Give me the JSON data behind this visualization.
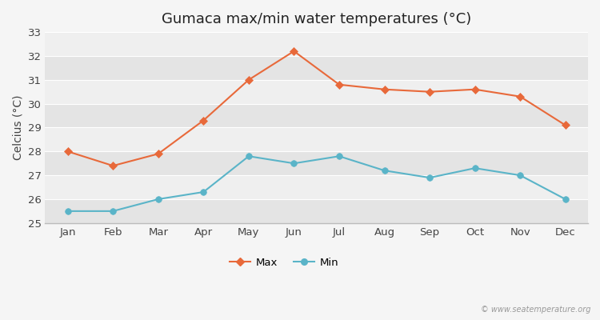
{
  "title": "Gumaca max/min water temperatures (°C)",
  "ylabel": "Celcius (°C)",
  "months": [
    "Jan",
    "Feb",
    "Mar",
    "Apr",
    "May",
    "Jun",
    "Jul",
    "Aug",
    "Sep",
    "Oct",
    "Nov",
    "Dec"
  ],
  "max_temps": [
    28.0,
    27.4,
    27.9,
    29.3,
    31.0,
    32.2,
    30.8,
    30.6,
    30.5,
    30.6,
    30.3,
    29.1
  ],
  "min_temps": [
    25.5,
    25.5,
    26.0,
    26.3,
    27.8,
    27.5,
    27.8,
    27.2,
    26.9,
    27.3,
    27.0,
    26.0
  ],
  "max_color": "#e8693a",
  "min_color": "#5ab4c8",
  "figure_bg": "#f5f5f5",
  "plot_bg_light": "#efefef",
  "plot_bg_dark": "#e4e4e4",
  "grid_color": "#ffffff",
  "ylim": [
    25,
    33
  ],
  "yticks": [
    25,
    26,
    27,
    28,
    29,
    30,
    31,
    32,
    33
  ],
  "legend_labels": [
    "Max",
    "Min"
  ],
  "watermark": "© www.seatemperature.org",
  "title_fontsize": 13,
  "axis_label_fontsize": 10,
  "tick_fontsize": 9.5
}
